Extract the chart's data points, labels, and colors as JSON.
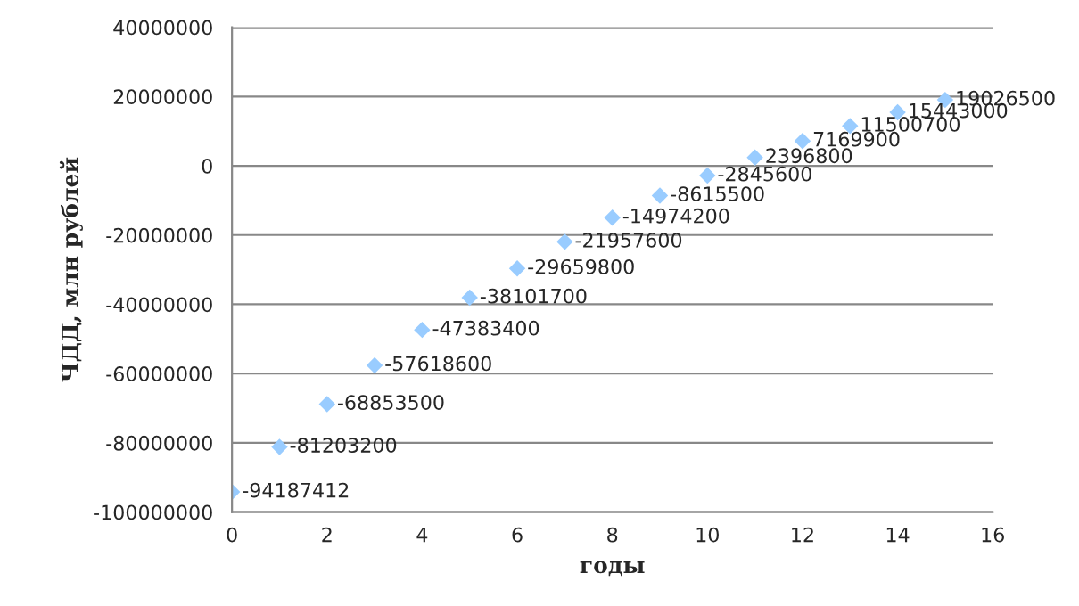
{
  "chart_data": {
    "type": "scatter",
    "xlabel": "годы",
    "ylabel": "ЧДД, млн рублей",
    "x": [
      0,
      1,
      2,
      3,
      4,
      5,
      6,
      7,
      8,
      9,
      10,
      11,
      12,
      13,
      14,
      15
    ],
    "series": [
      {
        "color": "#99ccff",
        "values": [
          -94187412,
          -81203200,
          -68853500,
          -57618600,
          -47383400,
          -38101700,
          -29659800,
          -21957600,
          -14974200,
          -8615500,
          -2845600,
          2396800,
          7169900,
          11500700,
          15443000,
          19026500
        ]
      }
    ],
    "xlim": [
      0,
      16
    ],
    "xticks": [
      0,
      2,
      4,
      6,
      8,
      10,
      12,
      14,
      16
    ],
    "ylim": [
      -100000000,
      40000000
    ],
    "yticks": [
      -100000000,
      -80000000,
      -60000000,
      -40000000,
      -20000000,
      0,
      20000000,
      40000000
    ],
    "grid": "y",
    "marker": "diamond",
    "data_labels": true,
    "legend": false
  }
}
